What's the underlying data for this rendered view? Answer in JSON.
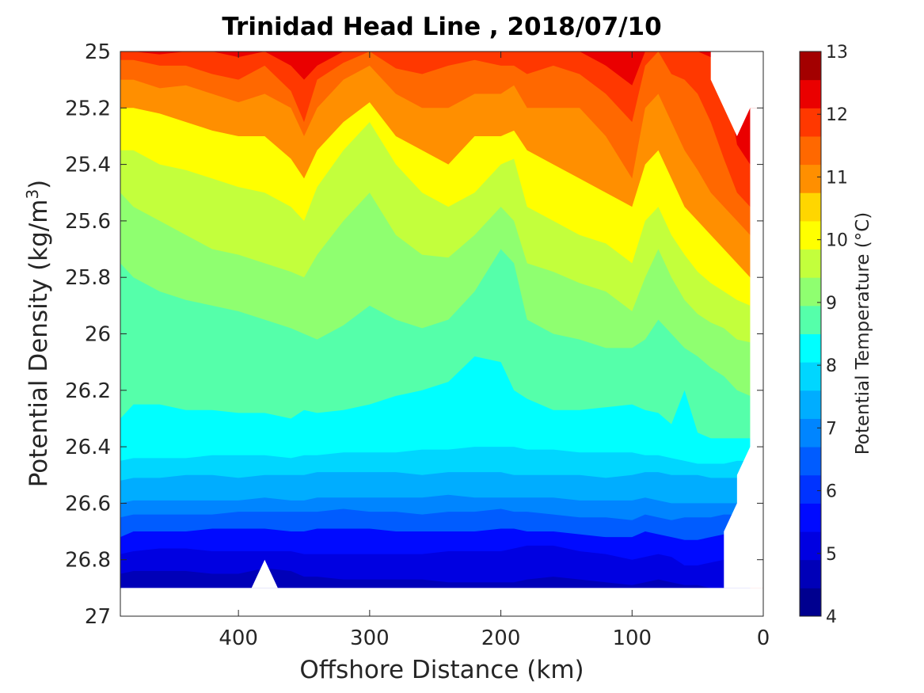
{
  "chart_data": {
    "type": "contour",
    "title": "Trinidad Head Line , 2018/07/10",
    "xlabel": "Offshore Distance (km)",
    "ylabel_main": "Potential Density (kg/m",
    "ylabel_sup": "3",
    "ylabel_end": ")",
    "colorbar_label": "Potential Temperature (°C)",
    "x_axis": {
      "reversed": true,
      "range": [
        490,
        0
      ],
      "ticks": [
        400,
        300,
        200,
        100,
        0
      ],
      "tick_labels": [
        "400",
        "300",
        "200",
        "100",
        "0"
      ]
    },
    "y_axis": {
      "reversed": true,
      "range": [
        25,
        27
      ],
      "ticks": [
        25,
        25.2,
        25.4,
        25.6,
        25.8,
        26,
        26.2,
        26.4,
        26.6,
        26.8,
        27
      ],
      "tick_labels": [
        "25",
        "25.2",
        "25.4",
        "25.6",
        "25.8",
        "26",
        "26.2",
        "26.4",
        "26.6",
        "26.8",
        "27"
      ]
    },
    "colorbar": {
      "range": [
        4,
        13
      ],
      "ticks": [
        4,
        5,
        6,
        7,
        8,
        9,
        10,
        11,
        12,
        13
      ],
      "tick_labels": [
        "4",
        "5",
        "6",
        "7",
        "8",
        "9",
        "10",
        "11",
        "12",
        "13"
      ]
    },
    "contour_levels": [
      4.5,
      5,
      5.5,
      6,
      6.5,
      7,
      7.5,
      8,
      8.5,
      9,
      9.5,
      10,
      10.5,
      11,
      11.5,
      12,
      12.5
    ],
    "band_colors": [
      "#00008f",
      "#0000b8",
      "#0000e1",
      "#000aff",
      "#0033ff",
      "#005cff",
      "#0085ff",
      "#00adff",
      "#00d6ff",
      "#00ffff",
      "#55ffaa",
      "#8fff70",
      "#c3ff3c",
      "#ffff00",
      "#ffd600",
      "#ff8f00",
      "#ff6800",
      "#ff3800",
      "#ea0000",
      "#a30000"
    ],
    "isolines_density": {
      "x": [
        490,
        480,
        460,
        440,
        420,
        400,
        380,
        360,
        350,
        340,
        320,
        300,
        280,
        260,
        240,
        220,
        200,
        190,
        180,
        160,
        140,
        120,
        100,
        90,
        80,
        70,
        60,
        50,
        40,
        30,
        20,
        10
      ],
      "lines": [
        {
          "level": 12.5,
          "values": [
            25.0,
            25.0,
            25.0,
            25.0,
            25.0,
            25.0,
            25.0,
            25.03,
            25.08,
            25.02,
            25.0,
            25.0,
            25.0,
            25.0,
            25.0,
            25.0,
            25.0,
            25.0,
            25.0,
            25.0,
            25.0,
            25.01,
            25.05,
            25.0,
            25.0,
            25.0,
            25.0,
            25.0,
            25.0,
            25.0,
            25.2,
            25.2
          ]
        },
        {
          "level": 12.0,
          "values": [
            25.0,
            25.0,
            25.01,
            25.0,
            25.0,
            25.02,
            25.0,
            25.05,
            25.1,
            25.05,
            25.0,
            25.0,
            25.0,
            25.0,
            25.0,
            25.0,
            25.0,
            25.0,
            25.0,
            25.0,
            25.0,
            25.05,
            25.12,
            25.0,
            25.0,
            25.0,
            25.0,
            25.0,
            25.02,
            25.05,
            25.33,
            25.4
          ]
        },
        {
          "level": 11.5,
          "values": [
            25.03,
            25.03,
            25.05,
            25.05,
            25.08,
            25.1,
            25.05,
            25.14,
            25.25,
            25.1,
            25.04,
            25.0,
            25.06,
            25.08,
            25.05,
            25.03,
            25.05,
            25.05,
            25.08,
            25.05,
            25.08,
            25.15,
            25.25,
            25.05,
            25.0,
            25.08,
            25.1,
            25.15,
            25.25,
            25.38,
            25.5,
            25.55
          ]
        },
        {
          "level": 11.0,
          "values": [
            25.1,
            25.1,
            25.13,
            25.12,
            25.15,
            25.18,
            25.15,
            25.2,
            25.3,
            25.2,
            25.1,
            25.05,
            25.15,
            25.2,
            25.2,
            25.15,
            25.15,
            25.12,
            25.2,
            25.2,
            25.2,
            25.3,
            25.45,
            25.2,
            25.15,
            25.25,
            25.35,
            25.42,
            25.5,
            25.55,
            25.6,
            25.65
          ]
        },
        {
          "level": 10.5,
          "values": [
            25.2,
            25.2,
            25.22,
            25.25,
            25.28,
            25.3,
            25.3,
            25.38,
            25.45,
            25.35,
            25.25,
            25.18,
            25.3,
            25.35,
            25.4,
            25.3,
            25.3,
            25.28,
            25.35,
            25.4,
            25.45,
            25.5,
            25.55,
            25.4,
            25.35,
            25.45,
            25.55,
            25.6,
            25.65,
            25.7,
            25.75,
            25.8
          ]
        },
        {
          "level": 10.0,
          "values": [
            25.35,
            25.35,
            25.4,
            25.42,
            25.45,
            25.48,
            25.5,
            25.55,
            25.6,
            25.48,
            25.35,
            25.25,
            25.4,
            25.5,
            25.55,
            25.5,
            25.4,
            25.38,
            25.55,
            25.6,
            25.65,
            25.68,
            25.75,
            25.6,
            25.55,
            25.65,
            25.72,
            25.78,
            25.82,
            25.85,
            25.88,
            25.9
          ]
        },
        {
          "level": 9.5,
          "values": [
            25.5,
            25.55,
            25.6,
            25.65,
            25.7,
            25.72,
            25.75,
            25.78,
            25.8,
            25.72,
            25.6,
            25.5,
            25.65,
            25.72,
            25.73,
            25.65,
            25.55,
            25.6,
            25.75,
            25.78,
            25.82,
            25.85,
            25.92,
            25.8,
            25.7,
            25.8,
            25.88,
            25.93,
            25.96,
            25.98,
            26.02,
            26.03
          ]
        },
        {
          "level": 9.0,
          "values": [
            25.75,
            25.8,
            25.85,
            25.88,
            25.9,
            25.92,
            25.95,
            25.98,
            26.0,
            26.02,
            25.97,
            25.9,
            25.95,
            25.98,
            25.95,
            25.85,
            25.7,
            25.75,
            25.95,
            26.0,
            26.02,
            26.05,
            26.05,
            26.02,
            25.95,
            26.0,
            26.05,
            26.08,
            26.12,
            26.15,
            26.2,
            26.22
          ]
        },
        {
          "level": 8.5,
          "values": [
            26.3,
            26.25,
            26.25,
            26.27,
            26.27,
            26.28,
            26.28,
            26.3,
            26.27,
            26.28,
            26.27,
            26.25,
            26.22,
            26.2,
            26.17,
            26.08,
            26.1,
            26.2,
            26.23,
            26.27,
            26.27,
            26.26,
            26.25,
            26.27,
            26.28,
            26.32,
            26.2,
            26.35,
            26.37,
            26.37,
            26.37,
            26.37
          ]
        },
        {
          "level": 8.0,
          "values": [
            26.45,
            26.44,
            26.44,
            26.44,
            26.43,
            26.43,
            26.43,
            26.44,
            26.43,
            26.43,
            26.42,
            26.42,
            26.42,
            26.41,
            26.41,
            26.4,
            26.4,
            26.4,
            26.41,
            26.41,
            26.42,
            26.42,
            26.42,
            26.43,
            26.43,
            26.44,
            26.45,
            26.46,
            26.46,
            26.46,
            26.45,
            26.45
          ]
        },
        {
          "level": 7.5,
          "values": [
            26.52,
            26.51,
            26.51,
            26.5,
            26.5,
            26.51,
            26.5,
            26.5,
            26.5,
            26.49,
            26.49,
            26.49,
            26.49,
            26.5,
            26.49,
            26.49,
            26.49,
            26.5,
            26.5,
            26.5,
            26.5,
            26.51,
            26.5,
            26.49,
            26.49,
            26.5,
            26.5,
            26.5,
            26.51,
            26.51,
            26.51,
            26.51
          ]
        },
        {
          "level": 7.0,
          "values": [
            26.6,
            26.59,
            26.59,
            26.59,
            26.59,
            26.59,
            26.58,
            26.59,
            26.59,
            26.58,
            26.58,
            26.58,
            26.58,
            26.58,
            26.57,
            26.58,
            26.58,
            26.58,
            26.58,
            26.58,
            26.59,
            26.59,
            26.59,
            26.58,
            26.59,
            26.6,
            26.6,
            26.6,
            26.6,
            26.6,
            26.6,
            26.6
          ]
        },
        {
          "level": 6.5,
          "values": [
            26.65,
            26.64,
            26.64,
            26.64,
            26.64,
            26.63,
            26.63,
            26.63,
            26.63,
            26.63,
            26.62,
            26.63,
            26.63,
            26.64,
            26.63,
            26.63,
            26.62,
            26.63,
            26.63,
            26.64,
            26.65,
            26.65,
            26.66,
            26.64,
            26.65,
            26.66,
            26.65,
            26.65,
            26.65,
            26.64,
            26.64,
            26.64
          ]
        },
        {
          "level": 6.0,
          "values": [
            26.72,
            26.7,
            26.7,
            26.7,
            26.69,
            26.69,
            26.69,
            26.7,
            26.7,
            26.69,
            26.69,
            26.69,
            26.7,
            26.7,
            26.7,
            26.7,
            26.69,
            26.69,
            26.7,
            26.7,
            26.71,
            26.72,
            26.72,
            26.7,
            26.71,
            26.72,
            26.73,
            26.73,
            26.72,
            26.71,
            26.71,
            26.71
          ]
        },
        {
          "level": 5.5,
          "values": [
            26.78,
            26.77,
            26.76,
            26.76,
            26.77,
            26.77,
            26.77,
            26.77,
            26.78,
            26.78,
            26.78,
            26.78,
            26.78,
            26.78,
            26.77,
            26.77,
            26.77,
            26.76,
            26.75,
            26.75,
            26.77,
            26.78,
            26.8,
            26.79,
            26.78,
            26.79,
            26.82,
            26.82,
            26.81,
            26.8,
            26.8,
            26.8
          ]
        },
        {
          "level": 5.0,
          "values": [
            26.85,
            26.84,
            26.84,
            26.84,
            26.85,
            26.85,
            26.83,
            26.84,
            26.86,
            26.86,
            26.87,
            26.87,
            26.87,
            26.87,
            26.88,
            26.88,
            26.88,
            26.88,
            26.87,
            26.86,
            26.87,
            26.88,
            26.89,
            26.88,
            26.87,
            26.88,
            26.89,
            26.89,
            26.9,
            26.9,
            26.9,
            26.9
          ]
        }
      ]
    },
    "data_extent": {
      "top_edge": {
        "x": [
          490,
          40,
          40,
          20,
          10,
          10
        ],
        "y": [
          25.0,
          25.0,
          25.1,
          25.3,
          25.2,
          25.2
        ]
      },
      "right_edge": {
        "x": [
          10,
          10,
          20,
          20,
          30,
          30
        ],
        "y": [
          25.2,
          26.4,
          26.5,
          26.6,
          26.7,
          26.9
        ]
      },
      "bottom": 26.9,
      "bottom_gap": {
        "x": [
          390,
          380,
          370
        ],
        "y": [
          26.9,
          26.8,
          26.9
        ]
      }
    }
  }
}
